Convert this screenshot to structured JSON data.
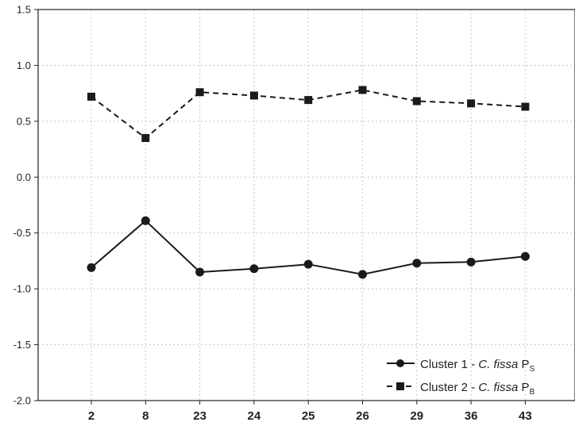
{
  "chart_data": {
    "type": "line",
    "categories": [
      "2",
      "8",
      "23",
      "24",
      "25",
      "26",
      "29",
      "36",
      "43"
    ],
    "y_tick_labels": [
      "-2.0",
      "-1.5",
      "-1.0",
      "-0.5",
      "0.0",
      "0.5",
      "1.0",
      "1.5"
    ],
    "ylim": [
      -2.0,
      1.5
    ],
    "grid": true,
    "legend_position": "bottom-right",
    "series": [
      {
        "name_main": "Cluster 1 - ",
        "name_species": "C. fissa",
        "name_symbol": " P",
        "name_subscript": "S",
        "values": [
          -0.81,
          -0.39,
          -0.85,
          -0.82,
          -0.78,
          -0.87,
          -0.77,
          -0.76,
          -0.71
        ],
        "style": "solid",
        "marker": "circle",
        "color": "#1a1a1a"
      },
      {
        "name_main": "Cluster 2 - ",
        "name_species": "C. fissa",
        "name_symbol": " P",
        "name_subscript": "B",
        "values": [
          0.72,
          0.35,
          0.76,
          0.73,
          0.69,
          0.78,
          0.68,
          0.66,
          0.63
        ],
        "style": "dashed",
        "marker": "square",
        "color": "#1a1a1a"
      }
    ]
  }
}
